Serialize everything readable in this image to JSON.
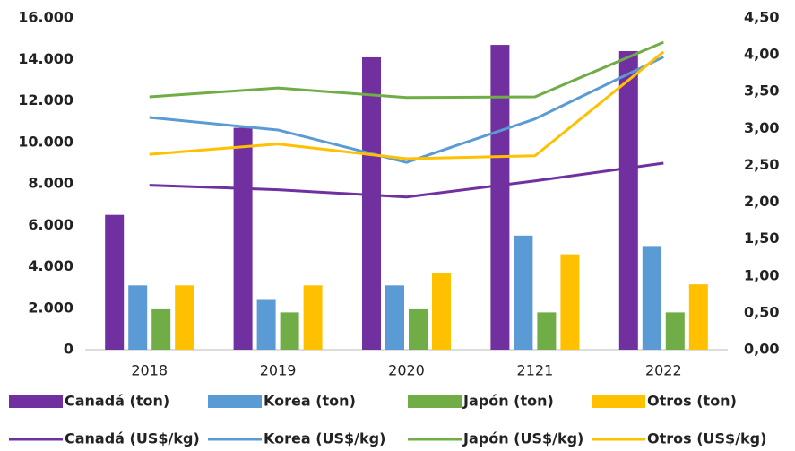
{
  "chart_data": {
    "type": "bar",
    "categories": [
      "2018",
      "2019",
      "2020",
      "2121",
      "2022"
    ],
    "series": [
      {
        "name": "Canadá (ton)",
        "type": "bar",
        "color": "#7030a0",
        "values": [
          6500,
          10700,
          14100,
          14700,
          14400
        ]
      },
      {
        "name": "Korea (ton)",
        "type": "bar",
        "color": "#5b9bd5",
        "values": [
          3100,
          2400,
          3100,
          5500,
          5000
        ]
      },
      {
        "name": "Japón (ton)",
        "type": "bar",
        "color": "#70ad47",
        "values": [
          1950,
          1800,
          1950,
          1800,
          1800
        ]
      },
      {
        "name": "Otros (ton)",
        "type": "bar",
        "color": "#ffc000",
        "values": [
          3100,
          3100,
          3700,
          4600,
          3150
        ]
      },
      {
        "name": "Canadá (US$/kg)",
        "type": "line",
        "axis": "y2",
        "color": "#7030a0",
        "values": [
          2.23,
          2.17,
          2.07,
          2.29,
          2.53
        ]
      },
      {
        "name": "Korea (US$/kg)",
        "type": "line",
        "axis": "y2",
        "color": "#5b9bd5",
        "values": [
          3.15,
          2.98,
          2.54,
          3.13,
          3.97
        ]
      },
      {
        "name": "Japón (US$/kg)",
        "type": "line",
        "axis": "y2",
        "color": "#70ad47",
        "values": [
          3.43,
          3.55,
          3.42,
          3.43,
          4.17
        ]
      },
      {
        "name": "Otros (US$/kg)",
        "type": "line",
        "axis": "y2",
        "color": "#ffc000",
        "values": [
          2.65,
          2.79,
          2.59,
          2.63,
          4.04
        ]
      }
    ],
    "ylim": [
      0,
      16000
    ],
    "yticks": [
      0,
      {
        "value": 2000,
        "label": "2.000"
      },
      {
        "value": 4000,
        "label": "4.000"
      },
      {
        "value": 6000,
        "label": "6.000"
      },
      {
        "value": 8000,
        "label": "8.000"
      },
      {
        "value": 10000,
        "label": "10.000"
      },
      {
        "value": 12000,
        "label": "12.000"
      },
      {
        "value": 14000,
        "label": "14.000"
      },
      {
        "value": 16000,
        "label": "16.000"
      }
    ],
    "y2lim": [
      0,
      4.5
    ],
    "y2ticks": [
      {
        "value": 0,
        "label": "0,00"
      },
      {
        "value": 0.5,
        "label": "0,50"
      },
      {
        "value": 1,
        "label": "1,00"
      },
      {
        "value": 1.5,
        "label": "1,50"
      },
      {
        "value": 2,
        "label": "2,00"
      },
      {
        "value": 2.5,
        "label": "2,50"
      },
      {
        "value": 3,
        "label": "3,00"
      },
      {
        "value": 3.5,
        "label": "3,50"
      },
      {
        "value": 4,
        "label": "4,00"
      },
      {
        "value": 4.5,
        "label": "4,50"
      }
    ],
    "grid": false,
    "legend": "bottom"
  }
}
